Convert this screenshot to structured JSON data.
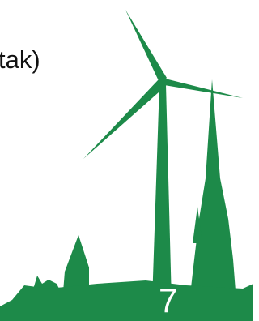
{
  "slide": {
    "text": "tak)",
    "page_number": "7"
  }
}
